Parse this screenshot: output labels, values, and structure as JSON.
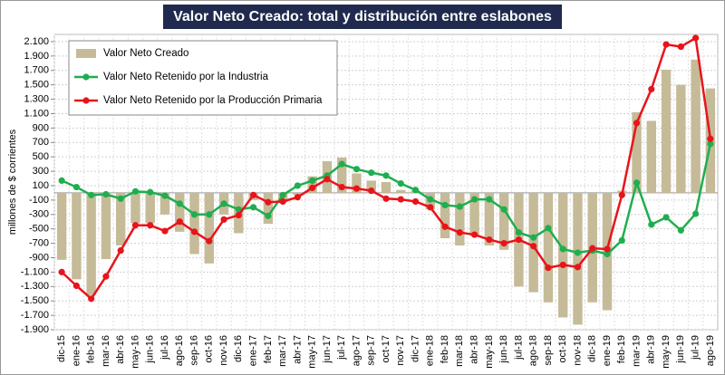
{
  "chart_data": {
    "type": "bar",
    "title": "Valor Neto Creado: total y distribución entre eslabones",
    "y_label": "millones de $ corrientes",
    "categories": [
      "dic-15",
      "ene-16",
      "feb-16",
      "mar-16",
      "abr-16",
      "may-16",
      "jun-16",
      "jul-16",
      "ago-16",
      "sep-16",
      "oct-16",
      "nov-16",
      "dic-16",
      "ene-17",
      "feb-17",
      "mar-17",
      "abr-17",
      "may-17",
      "jun-17",
      "jul-17",
      "ago-17",
      "sep-17",
      "oct-17",
      "nov-17",
      "dic-17",
      "ene-18",
      "feb-18",
      "mar-18",
      "abr-18",
      "may-18",
      "jun-18",
      "jul-18",
      "ago-18",
      "sep-18",
      "oct-18",
      "nov-18",
      "dic-18",
      "ene-19",
      "feb-19",
      "mar-19",
      "abr-19",
      "may-19",
      "jun-19",
      "jul-19",
      "ago-19"
    ],
    "series": [
      {
        "name": "Valor Neto Creado",
        "type": "bar",
        "color": "#c6bb98",
        "values": [
          -930,
          -1200,
          -1420,
          -920,
          -730,
          -420,
          -420,
          -300,
          -540,
          -850,
          -980,
          -300,
          -560,
          -100,
          -430,
          -130,
          -30,
          230,
          440,
          490,
          270,
          170,
          150,
          40,
          30,
          -230,
          -630,
          -730,
          -600,
          -730,
          -790,
          -1300,
          -1380,
          -1520,
          -1730,
          -1830,
          -1520,
          -1630,
          30,
          1120,
          1000,
          1710,
          1500,
          1850,
          1450
        ]
      },
      {
        "name": "Valor Neto Retenido por la Industria",
        "type": "line",
        "color": "#1fae4f",
        "values": [
          170,
          80,
          -30,
          -20,
          -80,
          20,
          10,
          -40,
          -150,
          -300,
          -300,
          -150,
          -230,
          -200,
          -320,
          -30,
          100,
          170,
          240,
          400,
          330,
          280,
          240,
          130,
          40,
          -90,
          -170,
          -190,
          -90,
          -90,
          -230,
          -550,
          -620,
          -490,
          -780,
          -830,
          -800,
          -850,
          -660,
          140,
          -440,
          -340,
          -520,
          -290,
          680
        ]
      },
      {
        "name": "Valor Neto Retenido por la Producción Primaria",
        "type": "line",
        "color": "#e8141b",
        "values": [
          -1100,
          -1290,
          -1470,
          -1160,
          -800,
          -450,
          -450,
          -530,
          -400,
          -540,
          -670,
          -370,
          -310,
          -30,
          -130,
          -120,
          -60,
          70,
          190,
          80,
          60,
          30,
          -80,
          -90,
          -120,
          -200,
          -470,
          -550,
          -580,
          -650,
          -700,
          -650,
          -740,
          -1040,
          -1000,
          -1030,
          -770,
          -780,
          -30,
          970,
          1440,
          2060,
          2030,
          2150,
          750
        ]
      }
    ],
    "ylim": [
      -1900,
      2200
    ],
    "yticks": [
      {
        "value": -1900,
        "label": "-1.900"
      },
      {
        "value": -1700,
        "label": "-1.700"
      },
      {
        "value": -1500,
        "label": "-1.500"
      },
      {
        "value": -1300,
        "label": "-1.300"
      },
      {
        "value": -1100,
        "label": "-1.100"
      },
      -900,
      -700,
      -500,
      -300,
      -100,
      100,
      300,
      500,
      700,
      900,
      {
        "value": 1100,
        "label": "1.100"
      },
      {
        "value": 1300,
        "label": "1.300"
      },
      {
        "value": 1500,
        "label": "1.500"
      },
      {
        "value": 1700,
        "label": "1.700"
      },
      {
        "value": 1900,
        "label": "1.900"
      },
      {
        "value": 2100,
        "label": "2.100"
      }
    ],
    "grid": true,
    "legend": "top-left"
  }
}
